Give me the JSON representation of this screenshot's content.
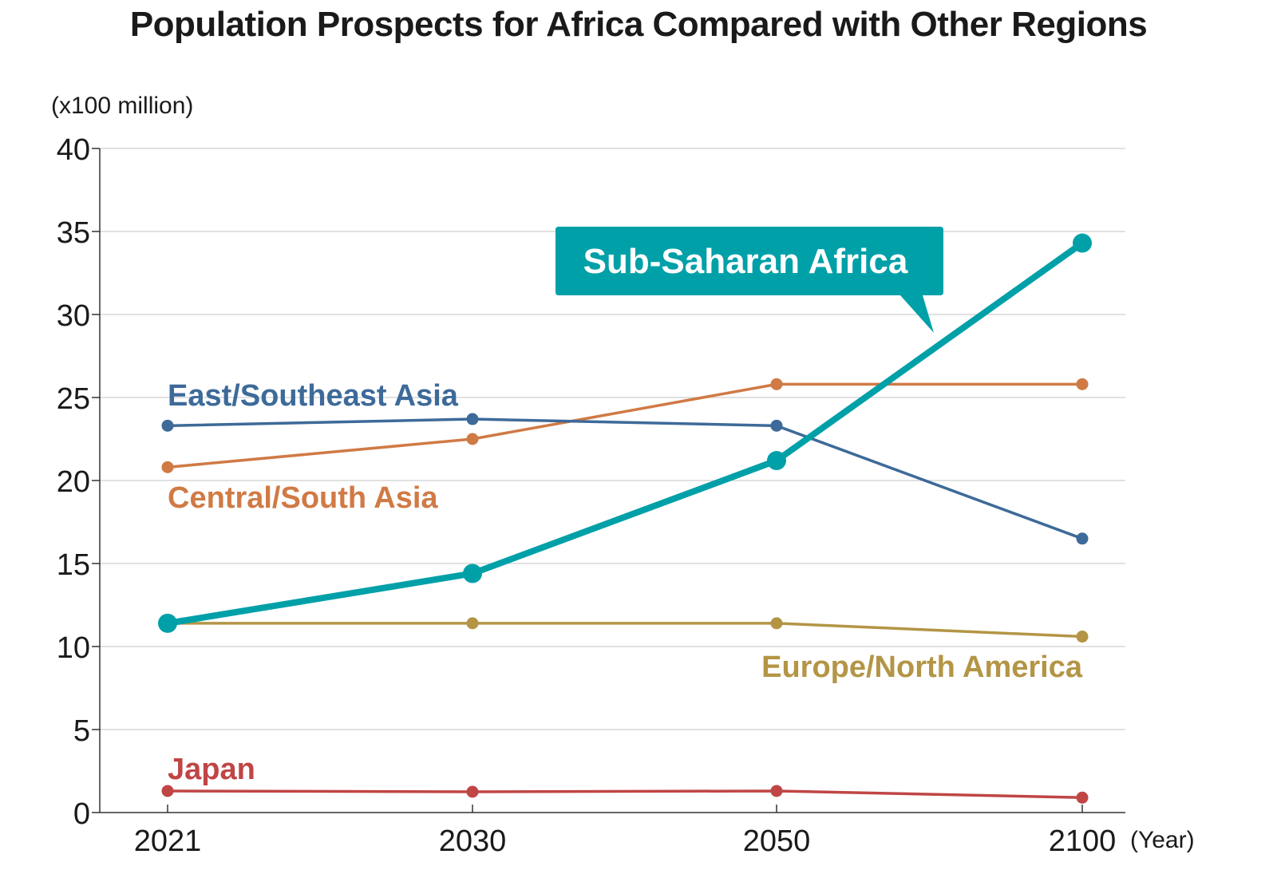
{
  "chart_data": {
    "type": "line",
    "title": "Population Prospects for Africa Compared with Other Regions",
    "ylabel": "(x100 million)",
    "xlabel": "(Year)",
    "categories": [
      "2021",
      "2030",
      "2050",
      "2100"
    ],
    "yticks": [
      "0",
      "5",
      "10",
      "15",
      "20",
      "25",
      "30",
      "35",
      "40"
    ],
    "ylim": [
      0,
      40
    ],
    "grid": true,
    "series": [
      {
        "name": "East/Southeast Asia",
        "color": "#3d6a99",
        "values": [
          23.3,
          23.7,
          23.3,
          16.5
        ]
      },
      {
        "name": "Central/South Asia",
        "color": "#d07a45",
        "values": [
          20.8,
          22.5,
          25.8,
          25.8
        ]
      },
      {
        "name": "Europe/North America",
        "color": "#b39545",
        "values": [
          11.4,
          11.4,
          11.4,
          10.6
        ]
      },
      {
        "name": "Japan",
        "color": "#c04545",
        "values": [
          1.3,
          1.25,
          1.3,
          0.9
        ]
      },
      {
        "name": "Sub-Saharan Africa",
        "color": "#00a0a8",
        "values": [
          11.4,
          14.4,
          21.2,
          34.3
        ]
      }
    ]
  }
}
